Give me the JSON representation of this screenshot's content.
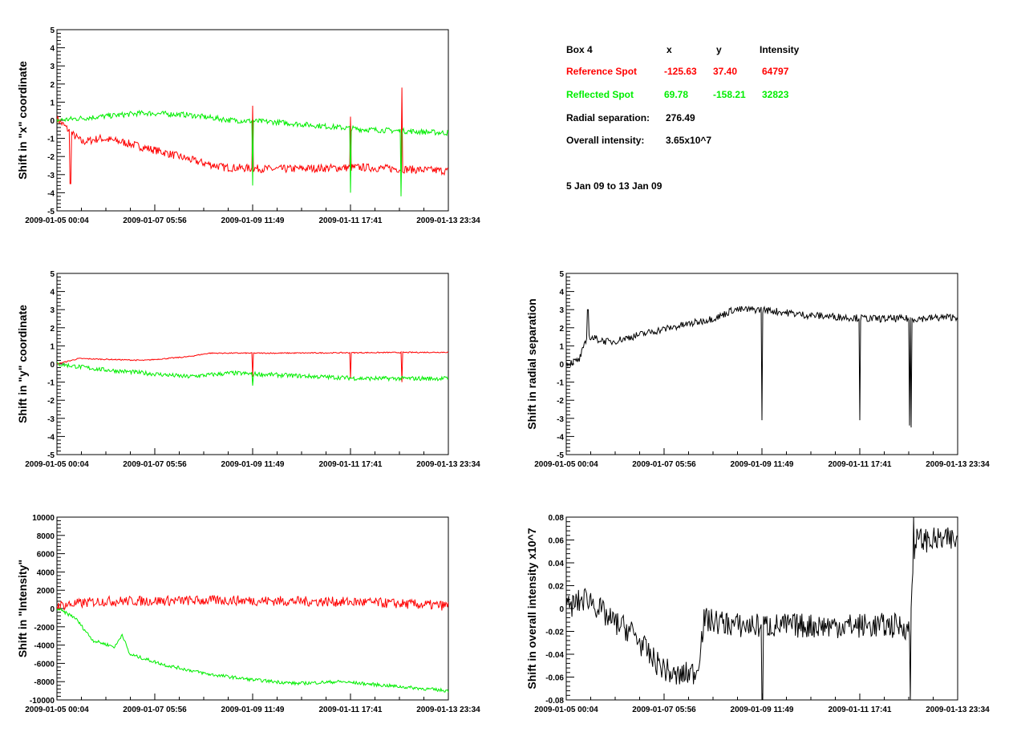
{
  "info_panel": {
    "header": {
      "box": "Box 4",
      "x": "x",
      "y": "y",
      "intensity": "Intensity"
    },
    "reference": {
      "label": "Reference Spot",
      "x": "-125.63",
      "y": "37.40",
      "intensity": "64797",
      "color": "#ff0000"
    },
    "reflected": {
      "label": "Reflected Spot",
      "x": "69.78",
      "y": "-158.21",
      "intensity": "32823",
      "color": "#00ee00"
    },
    "radial": {
      "label": "Radial separation:",
      "value": "276.49"
    },
    "overall": {
      "label": "Overall intensity:",
      "value": "3.65x10^7"
    },
    "date_range": "5 Jan 09 to 13 Jan 09"
  },
  "chart_data": [
    {
      "id": "x-shift",
      "type": "line",
      "ylabel": "Shift in \"x\" coordinate",
      "ylim": [
        -5,
        5
      ],
      "yticks": [
        "-5",
        "-4",
        "-3",
        "-2",
        "-1",
        "0",
        "1",
        "2",
        "3",
        "4",
        "5"
      ],
      "xticks": [
        "2009-01-05 00:04",
        "2009-01-07 05:56",
        "2009-01-09 11:49",
        "2009-01-11 17:41",
        "2009-01-13 23:34"
      ],
      "x_range": [
        "2009-01-05 00:04",
        "2009-01-13 23:34"
      ],
      "series": [
        {
          "color": "#ff0000",
          "noise": 0.22,
          "points": [
            [
              "2009-01-05 00:04",
              0.1
            ],
            [
              "2009-01-05 09:00",
              -0.8
            ],
            [
              "2009-01-05 14:00",
              -1.2
            ],
            [
              "2009-01-06 00:00",
              -1.0
            ],
            [
              "2009-01-06 12:00",
              -1.2
            ],
            [
              "2009-01-07 00:00",
              -1.5
            ],
            [
              "2009-01-07 12:00",
              -1.8
            ],
            [
              "2009-01-08 06:00",
              -2.3
            ],
            [
              "2009-01-08 20:00",
              -2.6
            ],
            [
              "2009-01-10 00:00",
              -2.7
            ],
            [
              "2009-01-12 00:00",
              -2.6
            ],
            [
              "2009-01-13 23:34",
              -2.8
            ]
          ],
          "spikes": [
            [
              "2009-01-05 07:30",
              -3.5
            ],
            [
              "2009-01-09 11:49",
              0.8
            ],
            [
              "2009-01-11 17:41",
              0.2
            ],
            [
              "2009-01-12 22:00",
              1.8
            ]
          ]
        },
        {
          "color": "#00ee00",
          "noise": 0.15,
          "points": [
            [
              "2009-01-05 00:04",
              0.0
            ],
            [
              "2009-01-06 00:00",
              0.2
            ],
            [
              "2009-01-07 00:00",
              0.4
            ],
            [
              "2009-01-08 00:00",
              0.3
            ],
            [
              "2009-01-09 00:00",
              0.0
            ],
            [
              "2009-01-10 00:00",
              -0.1
            ],
            [
              "2009-01-11 00:00",
              -0.3
            ],
            [
              "2009-01-12 00:00",
              -0.5
            ],
            [
              "2009-01-13 23:34",
              -0.7
            ]
          ],
          "spikes": [
            [
              "2009-01-09 11:49",
              -3.6
            ],
            [
              "2009-01-11 17:41",
              -4.0
            ],
            [
              "2009-01-12 21:30",
              -4.2
            ]
          ]
        }
      ]
    },
    {
      "id": "y-shift",
      "type": "line",
      "ylabel": "Shift in \"y\" coordinate",
      "ylim": [
        -5,
        5
      ],
      "yticks": [
        "-5",
        "-4",
        "-3",
        "-2",
        "-1",
        "0",
        "1",
        "2",
        "3",
        "4",
        "5"
      ],
      "xticks": [
        "2009-01-05 00:04",
        "2009-01-07 05:56",
        "2009-01-09 11:49",
        "2009-01-11 17:41",
        "2009-01-13 23:34"
      ],
      "x_range": [
        "2009-01-05 00:04",
        "2009-01-13 23:34"
      ],
      "series": [
        {
          "color": "#ff0000",
          "noise": 0.03,
          "points": [
            [
              "2009-01-05 00:04",
              0.0
            ],
            [
              "2009-01-05 12:00",
              0.3
            ],
            [
              "2009-01-07 00:00",
              0.2
            ],
            [
              "2009-01-08 00:00",
              0.4
            ],
            [
              "2009-01-08 12:00",
              0.6
            ],
            [
              "2009-01-10 00:00",
              0.6
            ],
            [
              "2009-01-13 23:34",
              0.65
            ]
          ],
          "spikes": [
            [
              "2009-01-09 11:49",
              -0.7
            ],
            [
              "2009-01-11 17:41",
              -0.8
            ],
            [
              "2009-01-12 22:00",
              -1.0
            ]
          ]
        },
        {
          "color": "#00ee00",
          "noise": 0.12,
          "points": [
            [
              "2009-01-05 00:04",
              0.0
            ],
            [
              "2009-01-06 00:00",
              -0.3
            ],
            [
              "2009-01-07 00:00",
              -0.5
            ],
            [
              "2009-01-08 00:00",
              -0.7
            ],
            [
              "2009-01-09 00:00",
              -0.5
            ],
            [
              "2009-01-10 00:00",
              -0.6
            ],
            [
              "2009-01-12 00:00",
              -0.8
            ],
            [
              "2009-01-13 23:34",
              -0.8
            ]
          ],
          "spikes": [
            [
              "2009-01-09 11:49",
              -1.2
            ]
          ]
        }
      ]
    },
    {
      "id": "intensity-shift",
      "type": "line",
      "ylabel": "Shift in \"Intensity\"",
      "ylim": [
        -10000,
        10000
      ],
      "yticks": [
        "-10000",
        "-8000",
        "-6000",
        "-4000",
        "-2000",
        "0",
        "2000",
        "4000",
        "6000",
        "8000",
        "10000"
      ],
      "xticks": [
        "2009-01-05 00:04",
        "2009-01-07 05:56",
        "2009-01-09 11:49",
        "2009-01-11 17:41",
        "2009-01-13 23:34"
      ],
      "x_range": [
        "2009-01-05 00:04",
        "2009-01-13 23:34"
      ],
      "series": [
        {
          "color": "#ff0000",
          "noise": 550,
          "points": [
            [
              "2009-01-05 00:04",
              300
            ],
            [
              "2009-01-06 00:00",
              800
            ],
            [
              "2009-01-09 00:00",
              900
            ],
            [
              "2009-01-12 00:00",
              700
            ],
            [
              "2009-01-13 23:34",
              300
            ]
          ],
          "spikes": []
        },
        {
          "color": "#00ee00",
          "noise": 180,
          "points": [
            [
              "2009-01-05 00:04",
              0
            ],
            [
              "2009-01-05 10:00",
              -1000
            ],
            [
              "2009-01-05 20:00",
              -3500
            ],
            [
              "2009-01-06 08:00",
              -4200
            ],
            [
              "2009-01-06 12:00",
              -2800
            ],
            [
              "2009-01-06 16:00",
              -5000
            ],
            [
              "2009-01-07 12:00",
              -6200
            ],
            [
              "2009-01-08 12:00",
              -7200
            ],
            [
              "2009-01-09 12:00",
              -7800
            ],
            [
              "2009-01-10 12:00",
              -8200
            ],
            [
              "2009-01-11 12:00",
              -8000
            ],
            [
              "2009-01-12 12:00",
              -8400
            ],
            [
              "2009-01-13 23:34",
              -9000
            ]
          ],
          "spikes": []
        }
      ]
    },
    {
      "id": "radial-shift",
      "type": "line",
      "ylabel": "Shift in radial separation",
      "ylim": [
        -5,
        5
      ],
      "yticks": [
        "-5",
        "-4",
        "-3",
        "-2",
        "-1",
        "0",
        "1",
        "2",
        "3",
        "4",
        "5"
      ],
      "xticks": [
        "2009-01-05 00:04",
        "2009-01-07 05:56",
        "2009-01-09 11:49",
        "2009-01-11 17:41",
        "2009-01-13 23:34"
      ],
      "x_range": [
        "2009-01-05 00:04",
        "2009-01-13 23:34"
      ],
      "series": [
        {
          "color": "#000000",
          "noise": 0.2,
          "points": [
            [
              "2009-01-05 00:04",
              0.0
            ],
            [
              "2009-01-05 07:00",
              0.2
            ],
            [
              "2009-01-05 12:00",
              1.5
            ],
            [
              "2009-01-06 00:00",
              1.2
            ],
            [
              "2009-01-07 00:00",
              1.8
            ],
            [
              "2009-01-08 00:00",
              2.3
            ],
            [
              "2009-01-08 12:00",
              2.6
            ],
            [
              "2009-01-08 20:00",
              3.0
            ],
            [
              "2009-01-09 12:00",
              3.0
            ],
            [
              "2009-01-10 12:00",
              2.7
            ],
            [
              "2009-01-12 00:00",
              2.5
            ],
            [
              "2009-01-13 00:00",
              2.5
            ],
            [
              "2009-01-13 23:34",
              2.6
            ]
          ],
          "spikes": [
            [
              "2009-01-05 12:00",
              3.0
            ],
            [
              "2009-01-09 11:49",
              -3.1
            ],
            [
              "2009-01-11 17:41",
              -3.1
            ],
            [
              "2009-01-12 21:00",
              -3.4
            ],
            [
              "2009-01-12 22:00",
              -3.5
            ]
          ]
        }
      ]
    },
    {
      "id": "overall-intensity-shift",
      "type": "line",
      "ylabel": "Shift in overall intensity x10^7",
      "ylim": [
        -0.08,
        0.08
      ],
      "yticks": [
        "-0.08",
        "-0.06",
        "-0.04",
        "-0.02",
        "0",
        "0.02",
        "0.04",
        "0.06",
        "0.08"
      ],
      "xticks": [
        "2009-01-05 00:04",
        "2009-01-07 05:56",
        "2009-01-09 11:49",
        "2009-01-11 17:41",
        "2009-01-13 23:34"
      ],
      "x_range": [
        "2009-01-05 00:04",
        "2009-01-13 23:34"
      ],
      "series": [
        {
          "color": "#000000",
          "noise": 0.011,
          "points": [
            [
              "2009-01-05 00:04",
              0.0
            ],
            [
              "2009-01-05 12:00",
              0.01
            ],
            [
              "2009-01-06 00:00",
              -0.01
            ],
            [
              "2009-01-06 12:00",
              -0.02
            ],
            [
              "2009-01-07 00:00",
              -0.045
            ],
            [
              "2009-01-07 12:00",
              -0.06
            ],
            [
              "2009-01-08 00:00",
              -0.055
            ],
            [
              "2009-01-08 04:00",
              -0.01
            ],
            [
              "2009-01-09 00:00",
              -0.015
            ],
            [
              "2009-01-11 00:00",
              -0.015
            ],
            [
              "2009-01-12 18:00",
              -0.015
            ],
            [
              "2009-01-12 21:00",
              -0.02
            ],
            [
              "2009-01-13 00:00",
              0.06
            ]
          ],
          "spikes": [
            [
              "2009-01-09 12:00",
              -0.08
            ],
            [
              "2009-01-12 21:30",
              -0.08
            ],
            [
              "2009-01-12 23:30",
              0.08
            ]
          ]
        }
      ]
    }
  ]
}
